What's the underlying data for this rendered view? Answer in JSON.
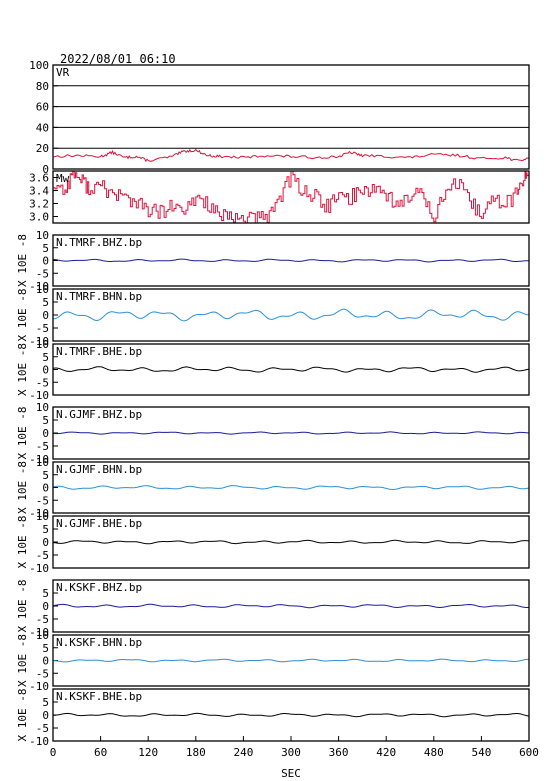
{
  "header": {
    "timestamp": "2022/08/01 06:10"
  },
  "x_axis": {
    "label": "SEC",
    "ticks": [
      0,
      60,
      120,
      180,
      240,
      300,
      360,
      420,
      480,
      540,
      600
    ]
  },
  "colors": {
    "vr": "#dc143c",
    "mw": "#dc143c",
    "dark_blue": "#1a1a99",
    "light_blue": "#2b8fd6",
    "black": "#000000",
    "grid": "#000000"
  },
  "chart_data": [
    {
      "type": "line",
      "id": "vr",
      "label": "VR",
      "xlim": [
        0,
        600
      ],
      "ylim": [
        0,
        100
      ],
      "yticks": [
        "100",
        "80",
        "60",
        "40",
        "20",
        "0"
      ],
      "grid": true,
      "color_key": "vr",
      "series": [
        {
          "x": [
            0,
            30,
            60,
            75,
            90,
            105,
            120,
            150,
            165,
            180,
            195,
            210,
            240,
            270,
            300,
            330,
            360,
            375,
            390,
            420,
            450,
            480,
            510,
            540,
            570,
            585,
            600
          ],
          "values": [
            12,
            13,
            12,
            16,
            11,
            12,
            8,
            12,
            17,
            18,
            13,
            12,
            11,
            13,
            12,
            11,
            12,
            16,
            13,
            12,
            11,
            14,
            13,
            10,
            11,
            8,
            10
          ]
        }
      ]
    },
    {
      "type": "line",
      "id": "mw",
      "label": "Mw",
      "xlim": [
        0,
        600
      ],
      "ylim": [
        2.9,
        3.7
      ],
      "yticks": [
        "3.6",
        "3.4",
        "3.2",
        "3.0"
      ],
      "grid": false,
      "color_key": "mw",
      "series": [
        {
          "x": [
            0,
            15,
            25,
            35,
            45,
            60,
            75,
            90,
            105,
            120,
            135,
            150,
            165,
            180,
            195,
            210,
            225,
            240,
            255,
            270,
            285,
            300,
            315,
            330,
            345,
            360,
            375,
            390,
            405,
            420,
            435,
            450,
            465,
            480,
            495,
            510,
            525,
            540,
            555,
            570,
            585,
            595,
            600
          ],
          "values": [
            3.5,
            3.4,
            3.7,
            3.55,
            3.45,
            3.45,
            3.35,
            3.3,
            3.2,
            3.1,
            3.05,
            3.15,
            3.05,
            3.3,
            3.2,
            3.0,
            2.95,
            3.0,
            2.95,
            3.0,
            3.3,
            3.6,
            3.4,
            3.3,
            3.15,
            3.3,
            3.3,
            3.4,
            3.45,
            3.35,
            3.15,
            3.3,
            3.4,
            3.0,
            3.4,
            3.5,
            3.2,
            3.05,
            3.25,
            3.2,
            3.35,
            3.65,
            3.7
          ]
        }
      ]
    },
    {
      "type": "line",
      "id": "tmrf-bhz",
      "label": "N.TMRF.BHZ.bp",
      "ylabel": "X 10E -8",
      "xlim": [
        0,
        600
      ],
      "ylim": [
        -10,
        10
      ],
      "yticks": [
        "10",
        "5",
        "0",
        "-5",
        "-10"
      ],
      "color_key": "dark_blue",
      "amplitude": 0.5
    },
    {
      "type": "line",
      "id": "tmrf-bhn",
      "label": "N.TMRF.BHN.bp",
      "ylabel": "X 10E -8",
      "xlim": [
        0,
        600
      ],
      "ylim": [
        -10,
        10
      ],
      "yticks": [
        "10",
        "5",
        "0",
        "-5",
        "-10"
      ],
      "color_key": "light_blue",
      "amplitude": 2.0
    },
    {
      "type": "line",
      "id": "tmrf-bhe",
      "label": "N.TMRF.BHE.bp",
      "ylabel": "X 10E -8",
      "xlim": [
        0,
        600
      ],
      "ylim": [
        -10,
        10
      ],
      "yticks": [
        "10",
        "5",
        "0",
        "-5",
        "-10"
      ],
      "color_key": "black",
      "amplitude": 1.0
    },
    {
      "type": "line",
      "id": "gjmf-bhz",
      "label": "N.GJMF.BHZ.bp",
      "ylabel": "X 10E -8",
      "xlim": [
        0,
        600
      ],
      "ylim": [
        -10,
        10
      ],
      "yticks": [
        "10",
        "5",
        "0",
        "-5",
        "-10"
      ],
      "color_key": "dark_blue",
      "amplitude": 0.4
    },
    {
      "type": "line",
      "id": "gjmf-bhn",
      "label": "N.GJMF.BHN.bp",
      "ylabel": "X 10E -8",
      "xlim": [
        0,
        600
      ],
      "ylim": [
        -10,
        10
      ],
      "yticks": [
        "10",
        "5",
        "0",
        "-5",
        "-10"
      ],
      "color_key": "light_blue",
      "amplitude": 0.7
    },
    {
      "type": "line",
      "id": "gjmf-bhe",
      "label": "N.GJMF.BHE.bp",
      "ylabel": "X 10E -8",
      "xlim": [
        0,
        600
      ],
      "ylim": [
        -10,
        10
      ],
      "yticks": [
        "10",
        "5",
        "0",
        "-5",
        "-10"
      ],
      "color_key": "black",
      "amplitude": 0.6
    },
    {
      "type": "line",
      "id": "kskf-bhz",
      "label": "N.KSKF.BHZ.bp",
      "ylabel": "X 10E -8",
      "xlim": [
        0,
        600
      ],
      "ylim": [
        -10,
        10
      ],
      "yticks": [
        "5",
        "0",
        "-5",
        "-10"
      ],
      "color_key": "dark_blue",
      "amplitude": 0.6
    },
    {
      "type": "line",
      "id": "kskf-bhn",
      "label": "N.KSKF.BHN.bp",
      "ylabel": "X 10E -8",
      "xlim": [
        0,
        600
      ],
      "ylim": [
        -10,
        10
      ],
      "yticks": [
        "10",
        "5",
        "0",
        "-5",
        "-10"
      ],
      "color_key": "light_blue",
      "amplitude": 0.5
    },
    {
      "type": "line",
      "id": "kskf-bhe",
      "label": "N.KSKF.BHE.bp",
      "ylabel": "X 10E -8",
      "xlim": [
        0,
        600
      ],
      "ylim": [
        -10,
        10
      ],
      "yticks": [
        "5",
        "0",
        "-5",
        "-10"
      ],
      "color_key": "black",
      "amplitude": 0.6
    }
  ]
}
